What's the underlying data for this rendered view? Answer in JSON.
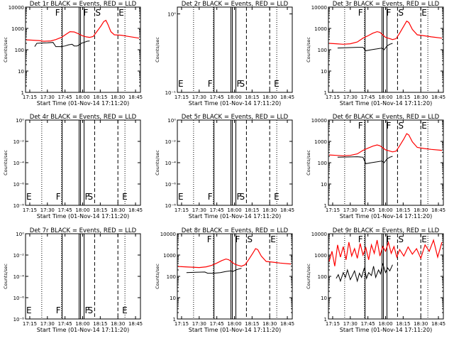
{
  "colors": {
    "events": "#000000",
    "lld": "#ff0000",
    "frame": "#000000",
    "background": "#ffffff"
  },
  "x_ticks": [
    "17:15",
    "17:30",
    "17:45",
    "18:00",
    "18:15",
    "18:30",
    "18:45"
  ],
  "x_label": "Start Time (01-Nov-14 17:11:20)",
  "y_label": "Counts/sec",
  "y_ticks_full": [
    "1",
    "10",
    "100",
    "1000",
    "10000"
  ],
  "y_ticks_empty_1": [
    "10⁻¹",
    "10⁰"
  ],
  "y_ticks_empty_2": [
    "10⁻⁸",
    "10⁻⁶",
    "10⁻⁴",
    "10⁻²",
    "10⁰"
  ],
  "chart_data": [
    {
      "title": "Det 1r BLACK = Events, RED = LLD",
      "type": "line",
      "scale": "log",
      "xlim": [
        17.19,
        18.82
      ],
      "ylim": [
        1,
        10000
      ],
      "flags": [
        {
          "label": "F",
          "x": 17.6
        },
        {
          "label": "F",
          "x": 18.0
        },
        {
          "label": "S",
          "x": 18.17
        },
        {
          "label": "E",
          "x": 18.5
        }
      ],
      "solid_lines": [
        17.71,
        17.95,
        17.97,
        18.02
      ],
      "dashed_lines": [
        18.17,
        18.5
      ],
      "dotted_lines": [
        17.42,
        17.7,
        18.6
      ],
      "series": [
        {
          "name": "Events",
          "color": "#000000",
          "x": [
            17.32,
            17.35,
            17.4,
            17.5,
            17.58,
            17.62,
            17.7,
            17.75,
            17.8,
            17.85,
            17.88,
            17.92,
            17.96,
            17.98,
            18.02,
            18.06,
            18.1
          ],
          "y": [
            140,
            200,
            205,
            210,
            220,
            140,
            140,
            150,
            170,
            180,
            150,
            150,
            175,
            200,
            220,
            250,
            260
          ]
        },
        {
          "name": "LLD",
          "color": "#ff0000",
          "x": [
            17.2,
            17.3,
            17.38,
            17.45,
            17.55,
            17.62,
            17.7,
            17.76,
            17.82,
            17.88,
            17.92,
            17.96,
            18.0,
            18.05,
            18.1,
            18.15,
            18.2,
            18.26,
            18.3,
            18.33,
            18.36,
            18.4,
            18.45,
            18.55,
            18.65,
            18.8
          ],
          "y": [
            290,
            280,
            270,
            250,
            260,
            300,
            380,
            520,
            700,
            680,
            600,
            520,
            450,
            400,
            380,
            420,
            700,
            1300,
            2100,
            2400,
            1500,
            700,
            500,
            480,
            420,
            350
          ]
        }
      ]
    },
    {
      "title": "Det 2r BLACK = Events, RED = LLD",
      "type": "line",
      "scale": "empty1",
      "xlim": [
        17.19,
        18.82
      ],
      "ylim": [
        0,
        1
      ],
      "flags": [
        {
          "label": "E",
          "x": 17.19
        },
        {
          "label": "F",
          "x": 17.61
        },
        {
          "label": "F",
          "x": 18.02
        },
        {
          "label": "S",
          "x": 18.06
        },
        {
          "label": "E",
          "x": 18.55
        }
      ],
      "solid_lines": [
        17.71,
        17.95,
        17.97,
        18.02
      ],
      "dashed_lines": [
        18.17,
        18.5
      ],
      "dotted_lines": [
        17.42,
        17.7,
        18.6
      ],
      "series": []
    },
    {
      "title": "Det 3r BLACK = Events, RED = LLD",
      "type": "line",
      "scale": "log",
      "xlim": [
        17.19,
        18.82
      ],
      "ylim": [
        1,
        10000
      ],
      "flags": [
        {
          "label": "F",
          "x": 17.6
        },
        {
          "label": "F",
          "x": 18.0
        },
        {
          "label": "S",
          "x": 18.17
        },
        {
          "label": "E",
          "x": 18.5
        }
      ],
      "solid_lines": [
        17.71,
        17.95,
        17.97,
        18.02
      ],
      "dashed_lines": [
        18.17,
        18.5
      ],
      "dotted_lines": [
        17.42,
        17.7,
        18.6
      ],
      "series": [
        {
          "name": "Events",
          "color": "#000000",
          "x": [
            17.32,
            17.45,
            17.6,
            17.68,
            17.72,
            17.8,
            17.88,
            17.95,
            17.98,
            18.02,
            18.06,
            18.1
          ],
          "y": [
            120,
            125,
            130,
            130,
            90,
            100,
            110,
            120,
            100,
            150,
            180,
            200
          ]
        },
        {
          "name": "LLD",
          "color": "#ff0000",
          "x": [
            17.2,
            17.3,
            17.4,
            17.5,
            17.6,
            17.68,
            17.75,
            17.82,
            17.88,
            17.92,
            17.96,
            18.0,
            18.05,
            18.1,
            18.15,
            18.2,
            18.26,
            18.3,
            18.33,
            18.38,
            18.45,
            18.55,
            18.65,
            18.8
          ],
          "y": [
            200,
            190,
            180,
            190,
            230,
            350,
            450,
            600,
            700,
            650,
            500,
            380,
            340,
            300,
            330,
            600,
            1300,
            2200,
            1900,
            900,
            500,
            450,
            400,
            350
          ]
        }
      ]
    },
    {
      "title": "Det 4r BLACK = Events, RED = LLD",
      "type": "line",
      "scale": "empty2",
      "xlim": [
        17.19,
        18.82
      ],
      "ylim": [
        0,
        1
      ],
      "flags": [
        {
          "label": "E",
          "x": 17.19
        },
        {
          "label": "F",
          "x": 17.61
        },
        {
          "label": "F",
          "x": 18.02
        },
        {
          "label": "S",
          "x": 18.06
        },
        {
          "label": "E",
          "x": 18.55
        }
      ],
      "solid_lines": [
        17.71,
        17.95,
        17.97,
        18.02
      ],
      "dashed_lines": [
        18.17,
        18.5
      ],
      "dotted_lines": [
        17.42,
        17.7,
        18.6
      ],
      "series": []
    },
    {
      "title": "Det 5r BLACK = Events, RED = LLD",
      "type": "line",
      "scale": "empty2",
      "xlim": [
        17.19,
        18.82
      ],
      "ylim": [
        0,
        1
      ],
      "flags": [
        {
          "label": "E",
          "x": 17.19
        },
        {
          "label": "F",
          "x": 17.61
        },
        {
          "label": "F",
          "x": 18.02
        },
        {
          "label": "S",
          "x": 18.06
        },
        {
          "label": "E",
          "x": 18.55
        }
      ],
      "solid_lines": [
        17.71,
        17.95,
        17.97,
        18.02
      ],
      "dashed_lines": [
        18.17,
        18.5
      ],
      "dotted_lines": [
        17.42,
        17.7,
        18.6
      ],
      "series": []
    },
    {
      "title": "Det 6r BLACK = Events, RED = LLD",
      "type": "line",
      "scale": "log",
      "xlim": [
        17.19,
        18.82
      ],
      "ylim": [
        1,
        10000
      ],
      "flags": [
        {
          "label": "F",
          "x": 17.6
        },
        {
          "label": "F",
          "x": 18.0
        },
        {
          "label": "S",
          "x": 18.17
        },
        {
          "label": "E",
          "x": 18.5
        }
      ],
      "solid_lines": [
        17.71,
        17.95,
        17.97,
        18.02
      ],
      "dashed_lines": [
        18.17,
        18.5
      ],
      "dotted_lines": [
        17.42,
        17.7,
        18.6
      ],
      "series": [
        {
          "name": "Events",
          "color": "#000000",
          "x": [
            17.32,
            17.45,
            17.6,
            17.68,
            17.72,
            17.8,
            17.88,
            17.95,
            17.98,
            18.02,
            18.06,
            18.1
          ],
          "y": [
            180,
            185,
            190,
            180,
            90,
            100,
            110,
            120,
            100,
            150,
            180,
            200
          ]
        },
        {
          "name": "LLD",
          "color": "#ff0000",
          "x": [
            17.2,
            17.3,
            17.4,
            17.5,
            17.6,
            17.68,
            17.75,
            17.82,
            17.88,
            17.92,
            17.96,
            18.0,
            18.05,
            18.1,
            18.15,
            18.2,
            18.26,
            18.3,
            18.33,
            18.38,
            18.45,
            18.55,
            18.65,
            18.8
          ],
          "y": [
            230,
            220,
            210,
            220,
            260,
            380,
            480,
            600,
            680,
            620,
            500,
            400,
            360,
            320,
            350,
            620,
            1300,
            2300,
            2000,
            950,
            520,
            460,
            420,
            380
          ]
        }
      ]
    },
    {
      "title": "Det 7r BLACK = Events, RED = LLD",
      "type": "line",
      "scale": "empty2",
      "xlim": [
        17.19,
        18.82
      ],
      "ylim": [
        0,
        1
      ],
      "flags": [
        {
          "label": "E",
          "x": 17.19
        },
        {
          "label": "F",
          "x": 17.61
        },
        {
          "label": "F",
          "x": 18.02
        },
        {
          "label": "S",
          "x": 18.06
        },
        {
          "label": "E",
          "x": 18.55
        }
      ],
      "solid_lines": [
        17.71,
        17.95,
        17.97,
        18.02
      ],
      "dashed_lines": [
        18.17,
        18.5
      ],
      "dotted_lines": [
        17.42,
        17.7,
        18.6
      ],
      "series": []
    },
    {
      "title": "Det 8r BLACK = Events, RED = LLD",
      "type": "line",
      "scale": "log",
      "xlim": [
        17.19,
        18.82
      ],
      "ylim": [
        1,
        10000
      ],
      "flags": [
        {
          "label": "F",
          "x": 17.6
        },
        {
          "label": "F",
          "x": 18.0
        },
        {
          "label": "S",
          "x": 18.17
        },
        {
          "label": "E",
          "x": 18.5
        }
      ],
      "solid_lines": [
        17.71,
        17.95,
        17.97,
        18.02
      ],
      "dashed_lines": [
        18.17,
        18.5
      ],
      "dotted_lines": [
        17.42,
        17.7,
        18.6
      ],
      "series": [
        {
          "name": "Events",
          "color": "#000000",
          "x": [
            17.32,
            17.45,
            17.58,
            17.62,
            17.7,
            17.8,
            17.88,
            17.95,
            17.98,
            18.02,
            18.06,
            18.1
          ],
          "y": [
            150,
            155,
            160,
            140,
            140,
            150,
            170,
            180,
            170,
            200,
            220,
            240
          ]
        },
        {
          "name": "LLD",
          "color": "#ff0000",
          "x": [
            17.2,
            17.3,
            17.4,
            17.5,
            17.6,
            17.68,
            17.75,
            17.82,
            17.88,
            17.92,
            17.96,
            18.0,
            18.05,
            18.1,
            18.15,
            18.2,
            18.26,
            18.3,
            18.33,
            18.38,
            18.45,
            18.55,
            18.65,
            18.8
          ],
          "y": [
            290,
            280,
            270,
            260,
            280,
            330,
            420,
            550,
            650,
            600,
            480,
            380,
            330,
            300,
            350,
            600,
            1200,
            2000,
            1800,
            900,
            500,
            460,
            420,
            380
          ]
        }
      ]
    },
    {
      "title": "Det 9r BLACK = Events, RED = LLD",
      "type": "line",
      "scale": "log",
      "xlim": [
        17.19,
        18.82
      ],
      "ylim": [
        1,
        10000
      ],
      "flags": [
        {
          "label": "F",
          "x": 17.6
        },
        {
          "label": "F",
          "x": 18.0
        },
        {
          "label": "S",
          "x": 18.17
        },
        {
          "label": "E",
          "x": 18.5
        }
      ],
      "solid_lines": [
        17.71,
        17.95,
        17.97,
        18.02
      ],
      "dashed_lines": [
        18.17,
        18.5
      ],
      "dotted_lines": [
        17.42,
        17.7,
        18.6
      ],
      "series": [
        {
          "name": "Events",
          "color": "#000000",
          "x": [
            17.3,
            17.33,
            17.36,
            17.4,
            17.43,
            17.46,
            17.5,
            17.53,
            17.56,
            17.6,
            17.63,
            17.66,
            17.7,
            17.73,
            17.76,
            17.8,
            17.83,
            17.86,
            17.9,
            17.93,
            17.96,
            18.0,
            18.03,
            18.06,
            18.1
          ],
          "y": [
            80,
            120,
            60,
            150,
            90,
            200,
            70,
            110,
            180,
            60,
            140,
            90,
            260,
            80,
            150,
            110,
            300,
            90,
            200,
            130,
            400,
            150,
            250,
            180,
            350
          ]
        },
        {
          "name": "LLD",
          "color": "#ff0000",
          "x": [
            17.2,
            17.24,
            17.28,
            17.32,
            17.36,
            17.4,
            17.44,
            17.48,
            17.52,
            17.56,
            17.6,
            17.64,
            17.68,
            17.72,
            17.76,
            17.8,
            17.84,
            17.88,
            17.92,
            17.96,
            18.0,
            18.04,
            18.08,
            18.12,
            18.16,
            18.2,
            18.26,
            18.32,
            18.38,
            18.44,
            18.5,
            18.56,
            18.62,
            18.68,
            18.74,
            18.8
          ],
          "y": [
            500,
            1500,
            300,
            3000,
            800,
            2500,
            600,
            4000,
            900,
            2000,
            700,
            3500,
            1000,
            2200,
            600,
            3000,
            1200,
            5000,
            900,
            2500,
            1500,
            4000,
            1200,
            2500,
            800,
            1800,
            900,
            2400,
            1100,
            2000,
            700,
            3000,
            1500,
            5000,
            800,
            4000
          ]
        }
      ]
    }
  ]
}
